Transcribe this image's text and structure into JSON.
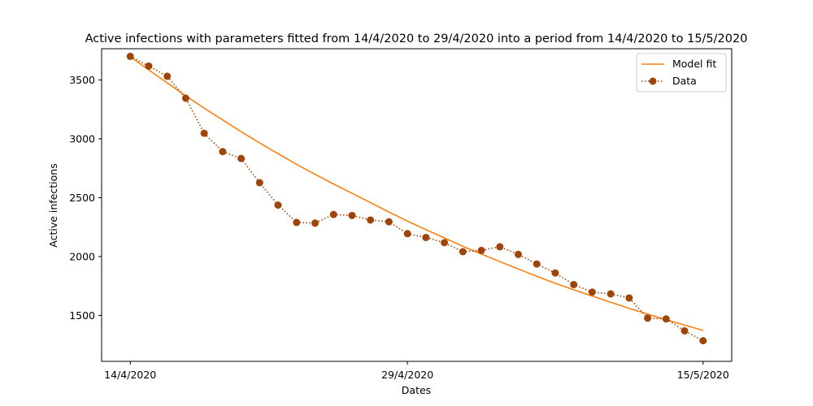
{
  "chart_data": {
    "type": "line",
    "title": "Active infections with parameters fitted from 14/4/2020 to 29/4/2020 into a period from 14/4/2020 to 15/5/2020",
    "xlabel": "Dates",
    "ylabel": "Active infections",
    "x_ticks": [
      "14/4/2020",
      "29/4/2020",
      "15/5/2020"
    ],
    "y_ticks": [
      1500,
      2000,
      2500,
      3000,
      3500
    ],
    "xlim": [
      -1.55,
      32.55
    ],
    "ylim": [
      1110,
      3765
    ],
    "legend_position": "top-right",
    "series": [
      {
        "name": "Model fit",
        "color": "#ff7f0e",
        "style": "solid",
        "x": [
          0,
          1,
          2,
          3,
          4,
          5,
          6,
          7,
          8,
          9,
          10,
          11,
          12,
          13,
          14,
          15,
          16,
          17,
          18,
          19,
          20,
          21,
          22,
          23,
          24,
          25,
          26,
          27,
          28,
          29,
          30,
          31
        ],
        "values": [
          3697,
          3585,
          3475,
          3365,
          3260,
          3160,
          3060,
          2965,
          2873,
          2783,
          2698,
          2616,
          2537,
          2458,
          2378,
          2301,
          2228,
          2158,
          2087,
          2021,
          1957,
          1894,
          1832,
          1773,
          1718,
          1664,
          1612,
          1560,
          1511,
          1463,
          1418,
          1373
        ]
      },
      {
        "name": "Data",
        "color": "#a0450a",
        "style": "dotted-markers",
        "x": [
          0,
          1,
          2,
          3,
          4,
          5,
          6,
          7,
          8,
          9,
          10,
          11,
          12,
          13,
          14,
          15,
          16,
          17,
          18,
          19,
          20,
          21,
          22,
          23,
          24,
          25,
          26,
          27,
          28,
          29,
          30,
          31
        ],
        "values": [
          3700,
          3618,
          3531,
          3345,
          3047,
          2891,
          2833,
          2627,
          2437,
          2290,
          2284,
          2357,
          2349,
          2310,
          2295,
          2194,
          2162,
          2118,
          2041,
          2052,
          2083,
          2018,
          1937,
          1860,
          1762,
          1698,
          1683,
          1648,
          1477,
          1470,
          1369,
          1285
        ]
      }
    ]
  }
}
